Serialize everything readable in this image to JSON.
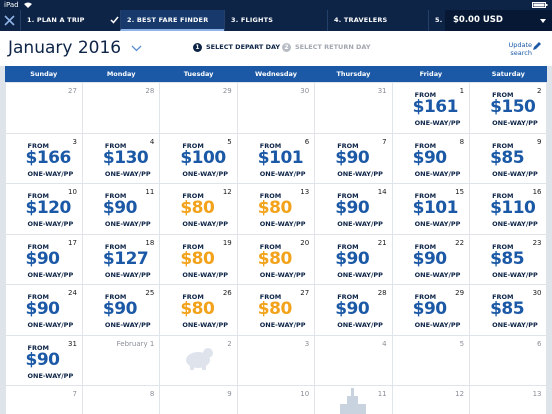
{
  "status_bar": {
    "device": "iPad"
  },
  "nav": {
    "steps": [
      "1. PLAN A TRIP",
      "2. BEST FARE FINDER",
      "3. FLIGHTS",
      "4. TRAVELERS",
      "5. S"
    ],
    "active_step": 1,
    "total": "$0.00 USD"
  },
  "header": {
    "month": "January 2016",
    "steps": [
      {
        "number": "1",
        "label": "SELECT DEPART DAY"
      },
      {
        "number": "2",
        "label": "SELECT RETURN DAY"
      }
    ],
    "update": "Update search"
  },
  "calendar": {
    "weekdays": [
      "Sunday",
      "Monday",
      "Tuesday",
      "Wednesday",
      "Thursday",
      "Friday",
      "Saturday"
    ],
    "from_label": "FROM",
    "fare_label": "ONE-WAY/PP",
    "weeks": [
      [
        {
          "day": "27",
          "outside": true
        },
        {
          "day": "28",
          "outside": true
        },
        {
          "day": "29",
          "outside": true
        },
        {
          "day": "30",
          "outside": true
        },
        {
          "day": "31",
          "outside": true
        },
        {
          "day": "1",
          "price": "$161"
        },
        {
          "day": "2",
          "price": "$150"
        }
      ],
      [
        {
          "day": "3",
          "price": "$166"
        },
        {
          "day": "4",
          "price": "$130"
        },
        {
          "day": "5",
          "price": "$100"
        },
        {
          "day": "6",
          "price": "$101"
        },
        {
          "day": "7",
          "price": "$90"
        },
        {
          "day": "8",
          "price": "$90"
        },
        {
          "day": "9",
          "price": "$85"
        }
      ],
      [
        {
          "day": "10",
          "price": "$120"
        },
        {
          "day": "11",
          "price": "$90"
        },
        {
          "day": "12",
          "price": "$80",
          "low": true
        },
        {
          "day": "13",
          "price": "$80",
          "low": true
        },
        {
          "day": "14",
          "price": "$90"
        },
        {
          "day": "15",
          "price": "$101"
        },
        {
          "day": "16",
          "price": "$110"
        }
      ],
      [
        {
          "day": "17",
          "price": "$90"
        },
        {
          "day": "18",
          "price": "$127"
        },
        {
          "day": "19",
          "price": "$80",
          "low": true
        },
        {
          "day": "20",
          "price": "$80",
          "low": true
        },
        {
          "day": "21",
          "price": "$90"
        },
        {
          "day": "22",
          "price": "$90"
        },
        {
          "day": "23",
          "price": "$85"
        }
      ],
      [
        {
          "day": "24",
          "price": "$90"
        },
        {
          "day": "25",
          "price": "$90"
        },
        {
          "day": "26",
          "price": "$80",
          "low": true
        },
        {
          "day": "27",
          "price": "$80",
          "low": true
        },
        {
          "day": "28",
          "price": "$90"
        },
        {
          "day": "29",
          "price": "$90"
        },
        {
          "day": "30",
          "price": "$85"
        }
      ],
      [
        {
          "day": "31",
          "price": "$90"
        },
        {
          "day": "February 1",
          "outside": true
        },
        {
          "day": "2",
          "outside": true
        },
        {
          "day": "3",
          "outside": true
        },
        {
          "day": "4",
          "outside": true
        },
        {
          "day": "5",
          "outside": true
        },
        {
          "day": "6",
          "outside": true
        }
      ],
      [
        {
          "day": "7",
          "outside": true
        },
        {
          "day": "8",
          "outside": true
        },
        {
          "day": "9",
          "outside": true
        },
        {
          "day": "10",
          "outside": true
        },
        {
          "day": "11",
          "outside": true
        },
        {
          "day": "12",
          "outside": true
        },
        {
          "day": "13",
          "outside": true
        }
      ]
    ]
  }
}
